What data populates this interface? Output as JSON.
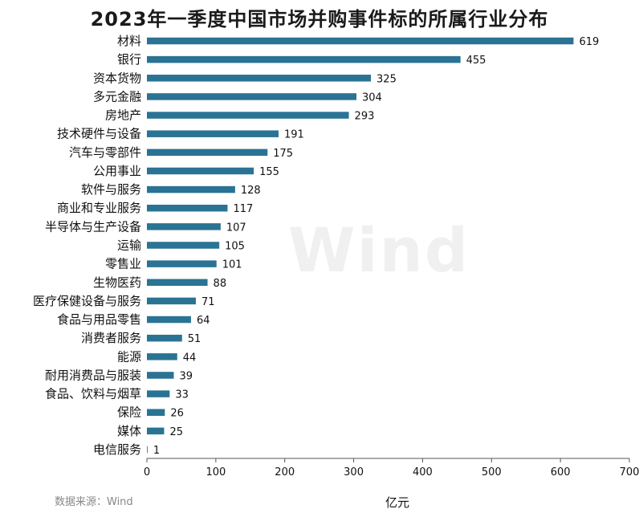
{
  "chart_data": {
    "type": "bar",
    "orientation": "horizontal",
    "title": "2023年一季度中国市场并购事件标的所属行业分布",
    "xlabel": "亿元",
    "ylabel": "",
    "xlim": [
      0,
      700
    ],
    "xticks": [
      0,
      100,
      200,
      300,
      400,
      500,
      600,
      700
    ],
    "categories": [
      "材料",
      "银行",
      "资本货物",
      "多元金融",
      "房地产",
      "技术硬件与设备",
      "汽车与零部件",
      "公用事业",
      "软件与服务",
      "商业和专业服务",
      "半导体与生产设备",
      "运输",
      "零售业",
      "生物医药",
      "医疗保健设备与服务",
      "食品与用品零售",
      "消费者服务",
      "能源",
      "耐用消费品与服装",
      "食品、饮料与烟草",
      "保险",
      "媒体",
      "电信服务"
    ],
    "values": [
      619,
      455,
      325,
      304,
      293,
      191,
      175,
      155,
      128,
      117,
      107,
      105,
      101,
      88,
      71,
      64,
      51,
      44,
      39,
      33,
      26,
      25,
      1
    ],
    "bar_color": "#2a7394",
    "grid": false,
    "legend": "none"
  },
  "source": "数据来源：Wind",
  "watermark": "Wind"
}
